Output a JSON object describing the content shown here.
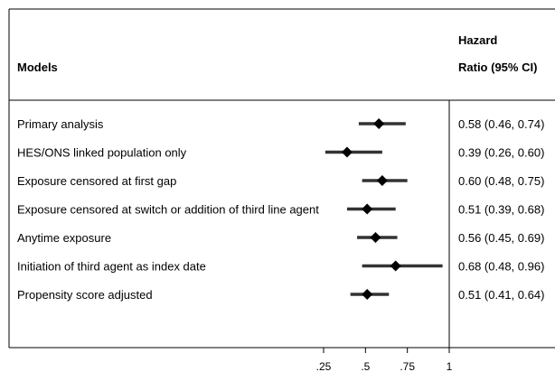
{
  "header": {
    "models_label": "Models",
    "hr_label_line1": "Hazard",
    "hr_label_line2": "Ratio (95% CI)"
  },
  "chart_data": {
    "type": "forest",
    "xlim": [
      0,
      1
    ],
    "xticks": [
      0.25,
      0.5,
      0.75,
      1
    ],
    "xtick_labels": [
      ".25",
      ".5",
      ".75",
      "1"
    ],
    "reference_line": 1,
    "rows": [
      {
        "label": "Primary analysis",
        "hr": 0.58,
        "lo": 0.46,
        "hi": 0.74,
        "text": "0.58 (0.46, 0.74)"
      },
      {
        "label": "HES/ONS linked population only",
        "hr": 0.39,
        "lo": 0.26,
        "hi": 0.6,
        "text": "0.39 (0.26, 0.60)"
      },
      {
        "label": "Exposure censored at first gap",
        "hr": 0.6,
        "lo": 0.48,
        "hi": 0.75,
        "text": "0.60 (0.48, 0.75)"
      },
      {
        "label": "Exposure censored at switch or addition of third line agent",
        "hr": 0.51,
        "lo": 0.39,
        "hi": 0.68,
        "text": "0.51 (0.39, 0.68)"
      },
      {
        "label": "Anytime exposure",
        "hr": 0.56,
        "lo": 0.45,
        "hi": 0.69,
        "text": "0.56 (0.45, 0.69)"
      },
      {
        "label": "Initiation of third agent as index date",
        "hr": 0.68,
        "lo": 0.48,
        "hi": 0.96,
        "text": "0.68 (0.48, 0.96)"
      },
      {
        "label": "Propensity score adjusted",
        "hr": 0.51,
        "lo": 0.41,
        "hi": 0.64,
        "text": "0.51 (0.41, 0.64)"
      }
    ]
  }
}
